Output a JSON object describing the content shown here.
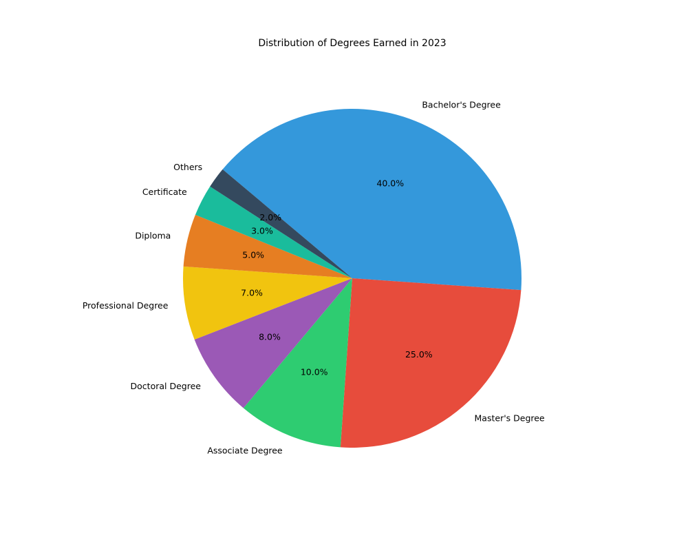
{
  "chart_data": {
    "type": "pie",
    "title": "Distribution of Degrees Earned in 2023",
    "categories": [
      "Bachelor's Degree",
      "Master's Degree",
      "Associate Degree",
      "Doctoral Degree",
      "Professional Degree",
      "Diploma",
      "Certificate",
      "Others"
    ],
    "values": [
      40,
      25,
      10,
      8,
      7,
      5,
      3,
      2
    ],
    "value_labels": [
      "40.0%",
      "25.0%",
      "10.0%",
      "8.0%",
      "7.0%",
      "5.0%",
      "3.0%",
      "2.0%"
    ],
    "colors": [
      "#3498db",
      "#e74c3c",
      "#2ecc71",
      "#9b59b6",
      "#f1c40f",
      "#e67e22",
      "#1abc9c",
      "#34495e"
    ],
    "start_angle_deg": 140,
    "direction": "clockwise"
  }
}
